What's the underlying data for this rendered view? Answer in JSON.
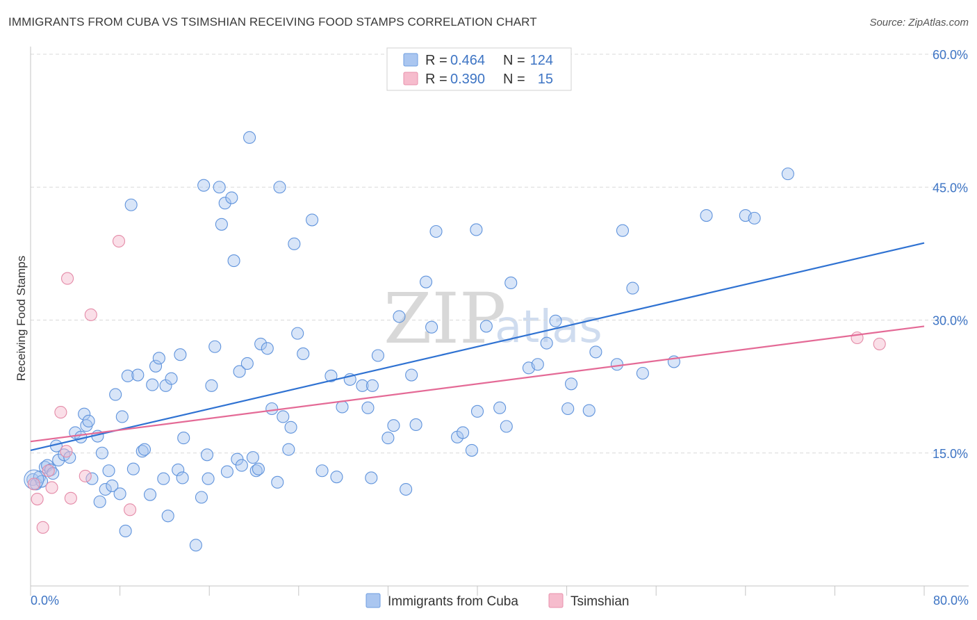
{
  "title": "IMMIGRANTS FROM CUBA VS TSIMSHIAN RECEIVING FOOD STAMPS CORRELATION CHART",
  "source": "Source: ZipAtlas.com",
  "watermark": {
    "zip": "ZIP",
    "atlas": "atlas"
  },
  "legend_top": {
    "r_label": "R =",
    "n_label": "N =",
    "rows": [
      {
        "r": "0.464",
        "n": "124",
        "color": "#aac6f0",
        "border": "#6e9de0"
      },
      {
        "r": "0.390",
        "n": "15",
        "color": "#f6bccd",
        "border": "#e890ac"
      }
    ]
  },
  "colors": {
    "cuba_fill": "#a9c5ef",
    "cuba_stroke": "#5f93dc",
    "cuba_line": "#2f72d2",
    "tsim_fill": "#f5b9cb",
    "tsim_stroke": "#e48aa7",
    "tsim_line": "#e46a96",
    "tick": "#3d74c4",
    "grid": "#d9d9d9"
  },
  "chart_data": {
    "type": "scatter",
    "title": "IMMIGRANTS FROM CUBA VS TSIMSHIAN RECEIVING FOOD STAMPS CORRELATION CHART",
    "xlabel": "",
    "ylabel": "Receiving Food Stamps",
    "xlim": [
      0,
      80
    ],
    "ylim": [
      0,
      60
    ],
    "x_tick_labels": [
      "0.0%",
      "80.0%"
    ],
    "y_ticks": [
      15,
      30,
      45,
      60
    ],
    "y_tick_labels": [
      "15.0%",
      "30.0%",
      "45.0%",
      "60.0%"
    ],
    "grid": true,
    "legend_placement": "top-center",
    "series": [
      {
        "name": "Immigrants from Cuba",
        "r": 0.464,
        "n": 124,
        "trend": [
          [
            0,
            15.3
          ],
          [
            80,
            38.7
          ]
        ],
        "points": [
          [
            0.2,
            12.0
          ],
          [
            0.5,
            11.5
          ],
          [
            0.8,
            12.3
          ],
          [
            1.0,
            11.8
          ],
          [
            1.3,
            13.4
          ],
          [
            1.5,
            13.6
          ],
          [
            1.8,
            13.1
          ],
          [
            2.0,
            12.7
          ],
          [
            2.3,
            15.8
          ],
          [
            2.5,
            14.2
          ],
          [
            3.0,
            14.8
          ],
          [
            3.5,
            14.5
          ],
          [
            4.0,
            17.3
          ],
          [
            4.5,
            16.8
          ],
          [
            4.8,
            19.4
          ],
          [
            5.0,
            18.1
          ],
          [
            5.2,
            18.6
          ],
          [
            5.5,
            12.1
          ],
          [
            6.0,
            16.9
          ],
          [
            6.2,
            9.5
          ],
          [
            6.4,
            15.0
          ],
          [
            6.7,
            10.9
          ],
          [
            7.0,
            13.0
          ],
          [
            7.3,
            11.3
          ],
          [
            7.6,
            21.6
          ],
          [
            8.0,
            10.4
          ],
          [
            8.2,
            19.1
          ],
          [
            8.5,
            6.2
          ],
          [
            8.7,
            23.7
          ],
          [
            9.0,
            43.0
          ],
          [
            9.2,
            13.2
          ],
          [
            9.6,
            23.8
          ],
          [
            10.0,
            15.2
          ],
          [
            10.2,
            15.4
          ],
          [
            10.7,
            10.3
          ],
          [
            10.9,
            22.7
          ],
          [
            11.2,
            24.8
          ],
          [
            11.5,
            25.7
          ],
          [
            11.9,
            12.1
          ],
          [
            12.1,
            22.6
          ],
          [
            12.3,
            7.9
          ],
          [
            12.6,
            23.4
          ],
          [
            13.2,
            13.1
          ],
          [
            13.4,
            26.1
          ],
          [
            13.6,
            12.2
          ],
          [
            13.7,
            16.7
          ],
          [
            14.8,
            4.6
          ],
          [
            15.3,
            10.0
          ],
          [
            15.5,
            45.2
          ],
          [
            15.8,
            14.8
          ],
          [
            15.9,
            12.1
          ],
          [
            16.2,
            22.6
          ],
          [
            16.5,
            27.0
          ],
          [
            16.9,
            45.0
          ],
          [
            17.1,
            40.8
          ],
          [
            17.4,
            43.2
          ],
          [
            17.6,
            12.9
          ],
          [
            18.0,
            43.8
          ],
          [
            18.2,
            36.7
          ],
          [
            18.5,
            14.3
          ],
          [
            18.7,
            24.2
          ],
          [
            18.9,
            13.6
          ],
          [
            19.4,
            25.1
          ],
          [
            19.6,
            50.6
          ],
          [
            19.9,
            14.5
          ],
          [
            20.2,
            13.0
          ],
          [
            20.4,
            13.2
          ],
          [
            20.6,
            27.3
          ],
          [
            21.2,
            26.8
          ],
          [
            21.6,
            20.0
          ],
          [
            22.1,
            11.7
          ],
          [
            22.3,
            45.0
          ],
          [
            22.6,
            19.1
          ],
          [
            23.1,
            15.4
          ],
          [
            23.3,
            17.9
          ],
          [
            23.6,
            38.6
          ],
          [
            23.9,
            28.5
          ],
          [
            24.4,
            26.2
          ],
          [
            25.2,
            41.3
          ],
          [
            26.1,
            13.0
          ],
          [
            26.9,
            23.7
          ],
          [
            27.4,
            12.3
          ],
          [
            27.9,
            20.2
          ],
          [
            28.6,
            23.3
          ],
          [
            29.7,
            22.6
          ],
          [
            30.2,
            20.1
          ],
          [
            30.5,
            12.2
          ],
          [
            30.6,
            22.6
          ],
          [
            31.1,
            26.0
          ],
          [
            32.0,
            16.7
          ],
          [
            32.5,
            18.1
          ],
          [
            33.0,
            30.4
          ],
          [
            33.6,
            10.9
          ],
          [
            34.1,
            23.8
          ],
          [
            34.5,
            18.2
          ],
          [
            35.4,
            34.3
          ],
          [
            35.9,
            29.2
          ],
          [
            36.3,
            40.0
          ],
          [
            38.2,
            16.8
          ],
          [
            38.7,
            17.3
          ],
          [
            39.5,
            15.3
          ],
          [
            39.9,
            40.2
          ],
          [
            40.0,
            19.7
          ],
          [
            40.8,
            29.3
          ],
          [
            42.0,
            20.1
          ],
          [
            42.6,
            18.0
          ],
          [
            43.0,
            34.2
          ],
          [
            44.6,
            24.6
          ],
          [
            45.4,
            25.0
          ],
          [
            46.2,
            27.4
          ],
          [
            47.0,
            29.9
          ],
          [
            48.1,
            20.0
          ],
          [
            48.4,
            22.8
          ],
          [
            50.0,
            19.8
          ],
          [
            50.6,
            26.4
          ],
          [
            52.5,
            25.0
          ],
          [
            53.0,
            40.1
          ],
          [
            53.9,
            33.6
          ],
          [
            54.8,
            24.0
          ],
          [
            57.6,
            25.3
          ],
          [
            60.5,
            41.8
          ],
          [
            64.0,
            41.8
          ],
          [
            64.8,
            41.5
          ],
          [
            67.8,
            46.5
          ]
        ]
      },
      {
        "name": "Tsimshian",
        "r": 0.39,
        "n": 15,
        "trend": [
          [
            0,
            16.3
          ],
          [
            80,
            29.3
          ]
        ],
        "points": [
          [
            0.3,
            11.5
          ],
          [
            0.6,
            9.8
          ],
          [
            1.1,
            6.6
          ],
          [
            1.6,
            13.0
          ],
          [
            1.9,
            11.1
          ],
          [
            2.7,
            19.6
          ],
          [
            3.2,
            15.2
          ],
          [
            3.3,
            34.7
          ],
          [
            3.6,
            9.9
          ],
          [
            4.9,
            12.4
          ],
          [
            5.4,
            30.6
          ],
          [
            7.9,
            38.9
          ],
          [
            8.9,
            8.6
          ],
          [
            74.0,
            28.0
          ],
          [
            76.0,
            27.3
          ]
        ]
      }
    ]
  },
  "bottom_legend": [
    {
      "label": "Immigrants from Cuba"
    },
    {
      "label": "Tsimshian"
    }
  ]
}
